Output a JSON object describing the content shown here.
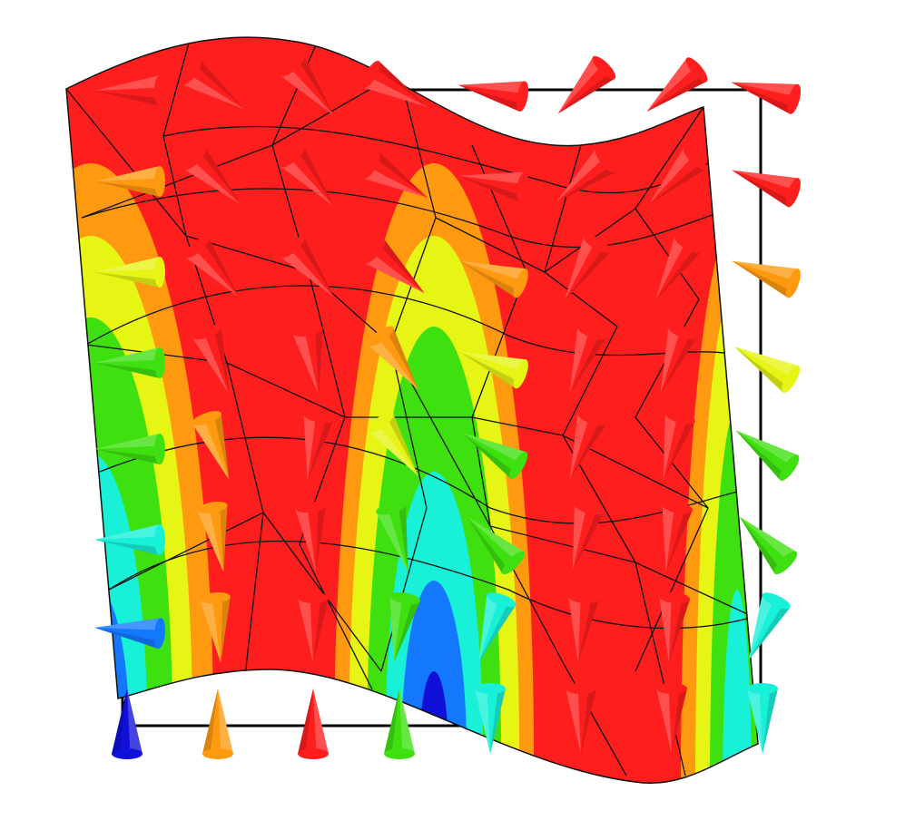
{
  "colors": {
    "red": "#ff1e1e",
    "orange": "#ff9a10",
    "yellow": "#e6f514",
    "green": "#3ee010",
    "cyan": "#18f0d8",
    "blue": "#1478ff",
    "darkblue": "#1010d8",
    "mesh": "#111111",
    "frame": "#000000"
  },
  "arrows": [
    [
      {
        "c": "red",
        "a": 180
      },
      {
        "c": "red",
        "a": 35
      },
      {
        "c": "red",
        "a": 50
      },
      {
        "c": "red",
        "a": 30
      },
      {
        "c": "red",
        "a": 190
      },
      {
        "c": "red",
        "a": 135
      },
      {
        "c": "red",
        "a": 140
      },
      {
        "c": "red",
        "a": 195
      }
    ],
    [
      {
        "c": "orange",
        "a": 180
      },
      {
        "c": "red",
        "a": 45
      },
      {
        "c": "red",
        "a": 50
      },
      {
        "c": "red",
        "a": 30
      },
      {
        "c": "red",
        "a": 190
      },
      {
        "c": "red",
        "a": 140
      },
      {
        "c": "red",
        "a": 135
      },
      {
        "c": "red",
        "a": 200
      }
    ],
    [
      {
        "c": "yellow",
        "a": 180
      },
      {
        "c": "red",
        "a": 50
      },
      {
        "c": "red",
        "a": 50
      },
      {
        "c": "red",
        "a": 40
      },
      {
        "c": "orange",
        "a": 200
      },
      {
        "c": "red",
        "a": 120
      },
      {
        "c": "red",
        "a": 120
      },
      {
        "c": "orange",
        "a": 200
      }
    ],
    [
      {
        "c": "green",
        "a": 180
      },
      {
        "c": "red",
        "a": 70
      },
      {
        "c": "red",
        "a": 80
      },
      {
        "c": "orange",
        "a": 55
      },
      {
        "c": "yellow",
        "a": 200
      },
      {
        "c": "red",
        "a": 110
      },
      {
        "c": "red",
        "a": 110
      },
      {
        "c": "yellow",
        "a": 210
      }
    ],
    [
      {
        "c": "green",
        "a": 180
      },
      {
        "c": "orange",
        "a": 70
      },
      {
        "c": "red",
        "a": 100
      },
      {
        "c": "yellow",
        "a": 55
      },
      {
        "c": "green",
        "a": 210
      },
      {
        "c": "red",
        "a": 110
      },
      {
        "c": "red",
        "a": 105
      },
      {
        "c": "green",
        "a": 215
      }
    ],
    [
      {
        "c": "cyan",
        "a": 180
      },
      {
        "c": "orange",
        "a": 80
      },
      {
        "c": "red",
        "a": 85
      },
      {
        "c": "green",
        "a": 75
      },
      {
        "c": "green",
        "a": 225
      },
      {
        "c": "red",
        "a": 105
      },
      {
        "c": "red",
        "a": 100
      },
      {
        "c": "green",
        "a": 225
      }
    ],
    [
      {
        "c": "blue",
        "a": 185
      },
      {
        "c": "orange",
        "a": 85
      },
      {
        "c": "red",
        "a": 90
      },
      {
        "c": "green",
        "a": 100
      },
      {
        "c": "cyan",
        "a": 110
      },
      {
        "c": "red",
        "a": 95
      },
      {
        "c": "red",
        "a": 95
      },
      {
        "c": "cyan",
        "a": 115
      }
    ],
    [
      {
        "c": "darkblue",
        "a": 270
      },
      {
        "c": "orange",
        "a": 270
      },
      {
        "c": "red",
        "a": 270
      },
      {
        "c": "green",
        "a": 270
      },
      {
        "c": "cyan",
        "a": 90
      },
      {
        "c": "red",
        "a": 90
      },
      {
        "c": "red",
        "a": 90
      },
      {
        "c": "cyan",
        "a": 90
      }
    ]
  ]
}
